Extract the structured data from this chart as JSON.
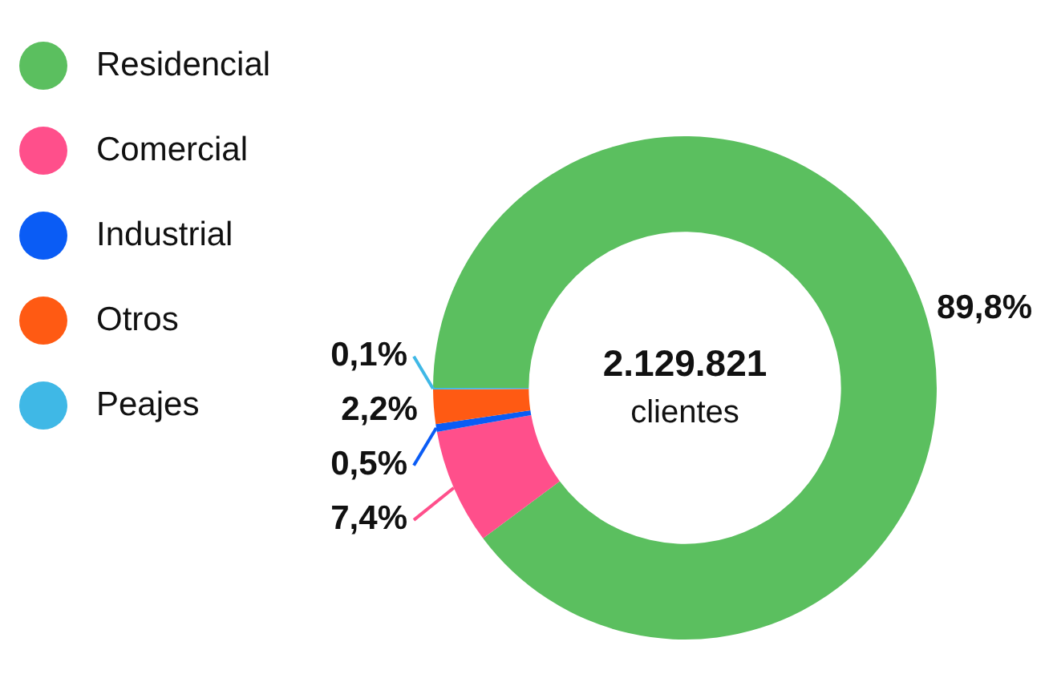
{
  "chart_data": {
    "type": "donut",
    "categories": [
      "Residencial",
      "Comercial",
      "Industrial",
      "Otros",
      "Peajes"
    ],
    "values": [
      89.8,
      7.4,
      0.5,
      2.2,
      0.1
    ],
    "colors": [
      "#5bbf5f",
      "#ff4f8b",
      "#0a5cf5",
      "#ff5a13",
      "#3fb8e6"
    ],
    "value_labels": [
      "89,8%",
      "7,4%",
      "0,5%",
      "2,2%",
      "0,1%"
    ],
    "annotations": [
      "2.129.821",
      "clientes"
    ],
    "legend": "top left"
  }
}
